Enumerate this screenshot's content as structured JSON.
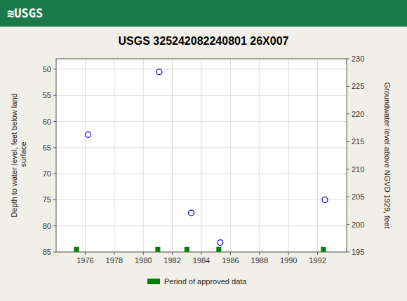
{
  "chart_data": {
    "type": "scatter",
    "title": "USGS 325242082240801 26X007",
    "annotations": [
      "≋USGS"
    ],
    "ylabel": "Depth to water level, feet below land\n surface",
    "y2label": "Groundwater level above NGVD 1929, feet",
    "xlim": [
      1974,
      1994
    ],
    "xticks": [
      1976,
      1978,
      1980,
      1982,
      1984,
      1986,
      1988,
      1990,
      1992
    ],
    "ylim": [
      85,
      48
    ],
    "yticks": [
      50,
      55,
      60,
      65,
      70,
      75,
      80,
      85
    ],
    "y2lim": [
      195,
      230
    ],
    "y2ticks": [
      230,
      225,
      220,
      215,
      210,
      205,
      200,
      195
    ],
    "grid": true,
    "legend": "bottom",
    "series": [
      {
        "color": "#0000cc",
        "marker": "circle",
        "x": [
          1976.2,
          1981.1,
          1983.3,
          1985.3,
          1992.5
        ],
        "values": [
          62.5,
          50.5,
          77.5,
          83.2,
          75.0
        ]
      },
      {
        "name": "Period of approved data",
        "color": "#008000",
        "marker": "square",
        "x": [
          1975.4,
          1981.0,
          1983.0,
          1985.2,
          1992.4
        ],
        "values": [
          84.5,
          84.5,
          84.5,
          84.5,
          84.5
        ]
      }
    ]
  }
}
